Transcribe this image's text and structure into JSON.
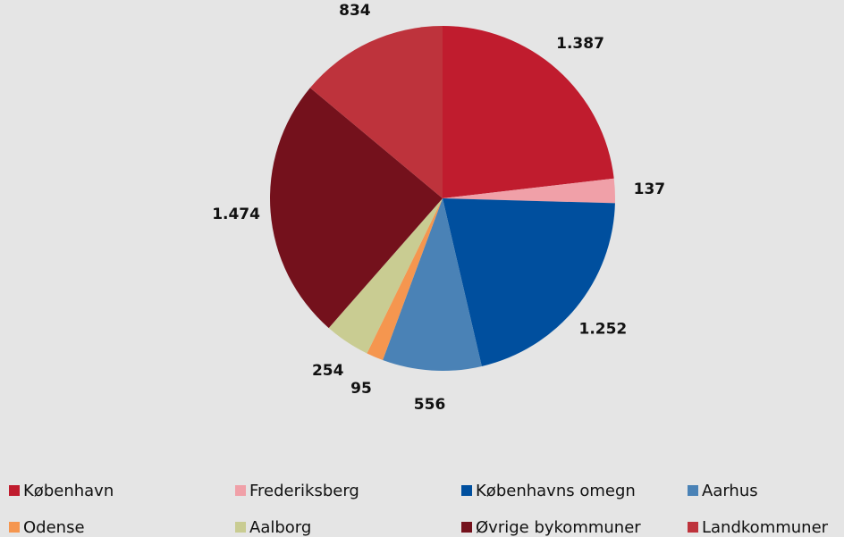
{
  "chart_data": {
    "type": "pie",
    "categories": [
      "København",
      "Frederiksberg",
      "Københavns omegn",
      "Aarhus",
      "Odense",
      "Aalborg",
      "Øvrige bykommuner",
      "Landkommuner"
    ],
    "values": [
      1387,
      137,
      1252,
      556,
      95,
      254,
      1474,
      834
    ],
    "value_labels": [
      "1.387",
      "137",
      "1.252",
      "556",
      "95",
      "254",
      "1.474",
      "834"
    ],
    "colors": [
      "#c01c2e",
      "#f0a0a8",
      "#004f9e",
      "#4a82b6",
      "#f5964f",
      "#c9cc92",
      "#74111c",
      "#be333c"
    ],
    "legend": "bottom"
  }
}
